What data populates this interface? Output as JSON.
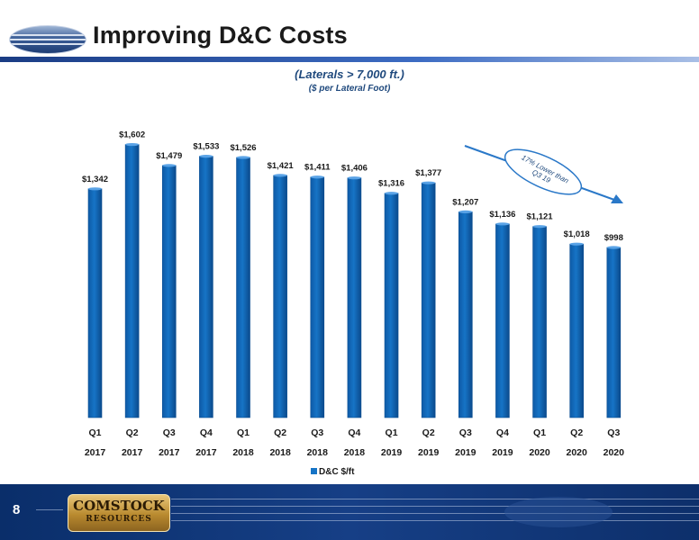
{
  "header": {
    "title": "Improving D&C Costs"
  },
  "footer": {
    "page_number": "8",
    "company_logo_line1": "COMSTOCK",
    "company_logo_line2": "RESOURCES"
  },
  "annotation": {
    "text": "17% Lower than Q3 19"
  },
  "colors": {
    "bar": "#1674c6",
    "bar_edge": "#0b4f93",
    "title_blue": "#1f497d",
    "footer_blue": "#163f86"
  },
  "chart_data": {
    "type": "bar",
    "title": "(Laterals > 7,000 ft.)",
    "subtitle": "($ per Lateral Foot)",
    "categories": [
      [
        "Q1",
        "2017"
      ],
      [
        "Q2",
        "2017"
      ],
      [
        "Q3",
        "2017"
      ],
      [
        "Q4",
        "2017"
      ],
      [
        "Q1",
        "2018"
      ],
      [
        "Q2",
        "2018"
      ],
      [
        "Q3",
        "2018"
      ],
      [
        "Q4",
        "2018"
      ],
      [
        "Q1",
        "2019"
      ],
      [
        "Q2",
        "2019"
      ],
      [
        "Q3",
        "2019"
      ],
      [
        "Q4",
        "2019"
      ],
      [
        "Q1",
        "2020"
      ],
      [
        "Q2",
        "2020"
      ],
      [
        "Q3",
        "2020"
      ]
    ],
    "series": [
      {
        "name": "D&C $/ft",
        "values": [
          1342,
          1602,
          1479,
          1533,
          1526,
          1421,
          1411,
          1406,
          1316,
          1377,
          1207,
          1136,
          1121,
          1018,
          998
        ],
        "labels": [
          "$1,342",
          "$1,602",
          "$1,479",
          "$1,533",
          "$1,526",
          "$1,421",
          "$1,411",
          "$1,406",
          "$1,316",
          "$1,377",
          "$1,207",
          "$1,136",
          "$1,121",
          "$1,018",
          "$998"
        ]
      }
    ],
    "ylim": [
      0,
      1700
    ],
    "grid": false,
    "legend": "bottom"
  }
}
